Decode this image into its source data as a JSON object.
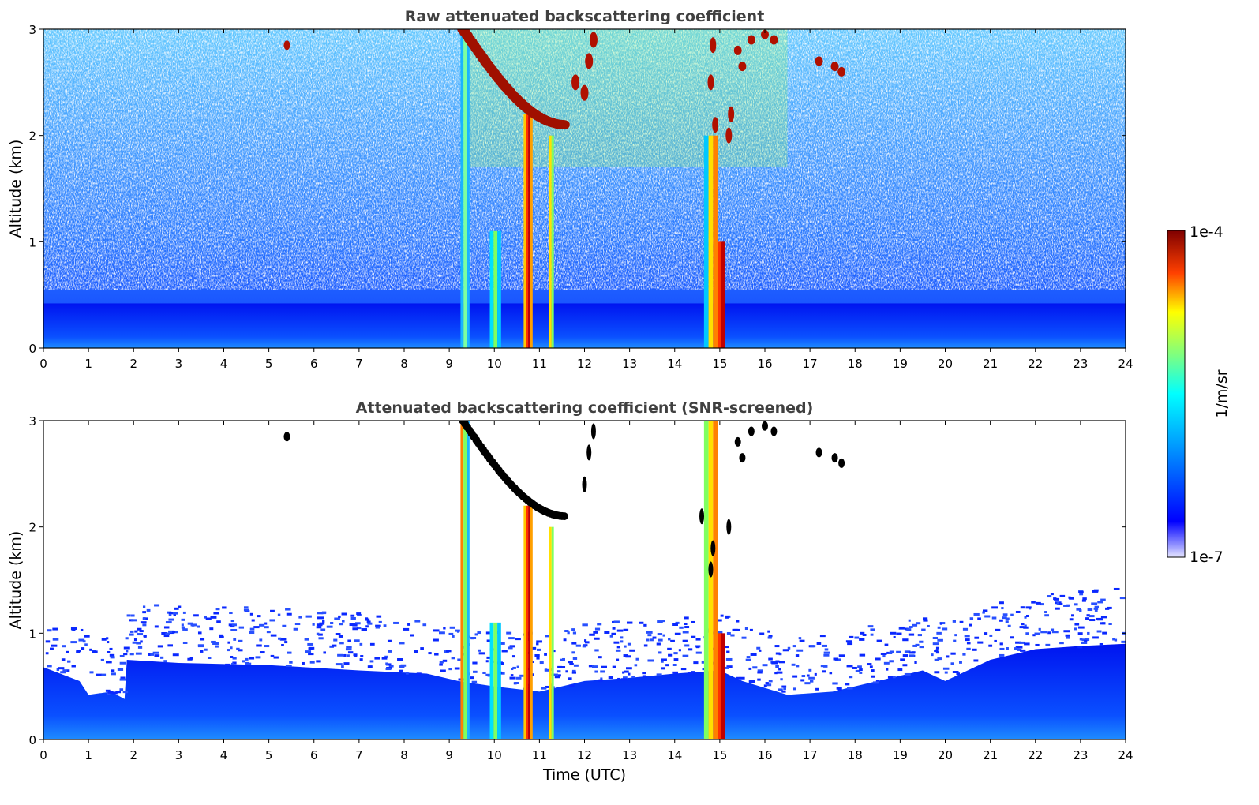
{
  "chart_data": [
    {
      "type": "heatmap",
      "title": "Raw attenuated backscattering coefficient",
      "xlabel": "",
      "ylabel": "Altitude (km)",
      "xlim": [
        0,
        24
      ],
      "ylim": [
        0,
        3
      ],
      "xticks": [
        0,
        1,
        2,
        3,
        4,
        5,
        6,
        7,
        8,
        9,
        10,
        11,
        12,
        13,
        14,
        15,
        16,
        17,
        18,
        19,
        20,
        21,
        22,
        23,
        24
      ],
      "yticks": [
        0,
        1,
        2,
        3
      ],
      "screened": false,
      "features": [
        {
          "kind": "boundary-layer",
          "x": [
            0,
            24
          ],
          "top_km": 0.45
        },
        {
          "kind": "precip-column",
          "x": [
            9.25,
            9.45
          ]
        },
        {
          "kind": "precip-column",
          "x": [
            9.9,
            10.15
          ]
        },
        {
          "kind": "precip-column",
          "x": [
            10.6,
            10.85
          ]
        },
        {
          "kind": "precip-column",
          "x": [
            11.2,
            11.35
          ]
        },
        {
          "kind": "precip-column",
          "x": [
            14.65,
            15.15
          ]
        },
        {
          "kind": "cloud-layer",
          "x": [
            9.3,
            12.3
          ],
          "alt_km": [
            2.1,
            3.0
          ]
        },
        {
          "kind": "cloud-layer",
          "x": [
            15.1,
            16.4
          ],
          "alt_km": [
            2.6,
            3.0
          ]
        }
      ]
    },
    {
      "type": "heatmap",
      "title": "Attenuated backscattering coefficient (SNR-screened)",
      "xlabel": "Time (UTC)",
      "ylabel": "Altitude (km)",
      "xlim": [
        0,
        24
      ],
      "ylim": [
        0,
        3
      ],
      "xticks": [
        0,
        1,
        2,
        3,
        4,
        5,
        6,
        7,
        8,
        9,
        10,
        11,
        12,
        13,
        14,
        15,
        16,
        17,
        18,
        19,
        20,
        21,
        22,
        23,
        24
      ],
      "yticks": [
        0,
        1,
        2,
        3
      ],
      "screened": true,
      "boundary_layer_top_km": [
        [
          0,
          0.68
        ],
        [
          0.8,
          0.55
        ],
        [
          1.0,
          0.42
        ],
        [
          1.5,
          0.45
        ],
        [
          1.8,
          0.38
        ],
        [
          1.85,
          0.75
        ],
        [
          3,
          0.72
        ],
        [
          5,
          0.7
        ],
        [
          7,
          0.65
        ],
        [
          8.5,
          0.62
        ],
        [
          9.2,
          0.55
        ],
        [
          10,
          0.5
        ],
        [
          11,
          0.45
        ],
        [
          12,
          0.55
        ],
        [
          13,
          0.58
        ],
        [
          14,
          0.62
        ],
        [
          15,
          0.65
        ],
        [
          15.5,
          0.55
        ],
        [
          16.5,
          0.42
        ],
        [
          17.5,
          0.45
        ],
        [
          18.5,
          0.55
        ],
        [
          19.5,
          0.65
        ],
        [
          20,
          0.55
        ],
        [
          21,
          0.75
        ],
        [
          22,
          0.85
        ],
        [
          23,
          0.88
        ],
        [
          24,
          0.9
        ]
      ]
    }
  ],
  "colorbar": {
    "label": "1/m/sr",
    "max_label": "1e-4",
    "min_label": "1e-7",
    "colormap": "jet",
    "scale": "log",
    "range": [
      1e-07,
      0.0001
    ]
  }
}
